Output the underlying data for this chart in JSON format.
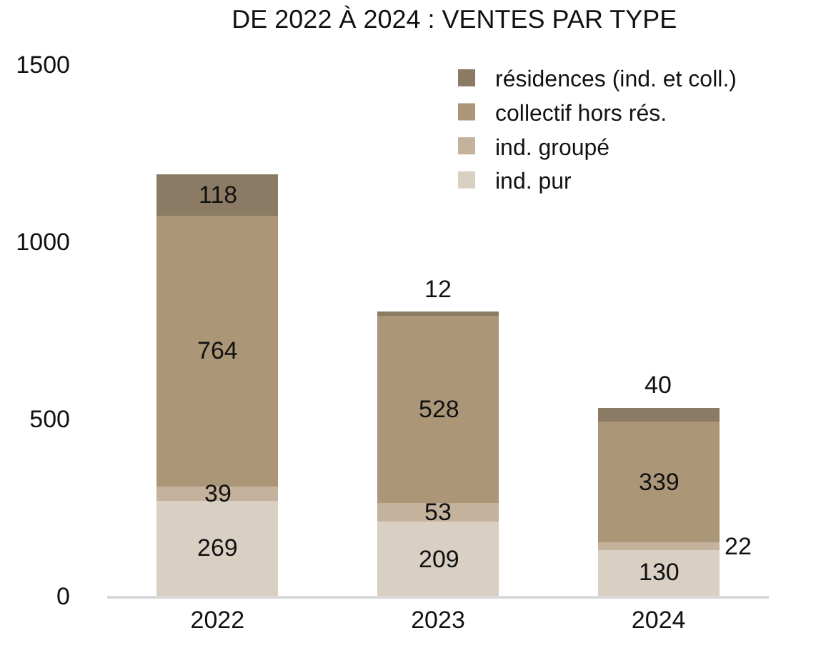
{
  "chart_data": {
    "type": "bar",
    "title": "DE 2022 À 2024 : VENTES PAR TYPE",
    "categories": [
      "2022",
      "2023",
      "2024"
    ],
    "stacked": true,
    "data_labels": true,
    "legend": "top right",
    "grid": false,
    "ylim": [
      0,
      1500
    ],
    "yticks": [
      0,
      500,
      1000,
      1500
    ],
    "series": [
      {
        "name": "ind. pur",
        "color": "#d9d0c3",
        "values": [
          269,
          209,
          130
        ]
      },
      {
        "name": "ind. groupé",
        "color": "#c4b29c",
        "values": [
          39,
          53,
          22
        ]
      },
      {
        "name": "collectif hors rés.",
        "color": "#ab9677",
        "values": [
          764,
          528,
          339
        ]
      },
      {
        "name": "résidences (ind. et coll.)",
        "color": "#8b7b64",
        "values": [
          118,
          12,
          40
        ]
      }
    ]
  }
}
